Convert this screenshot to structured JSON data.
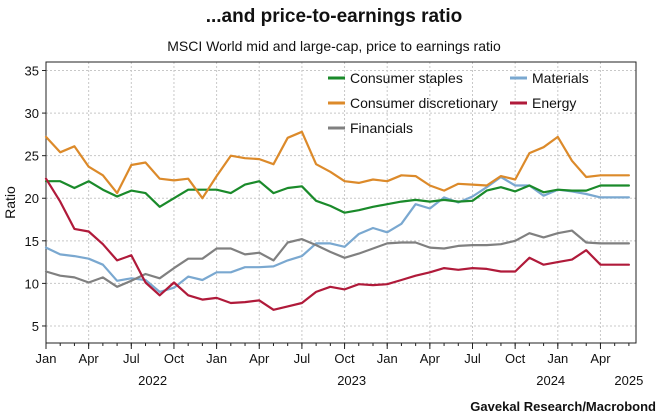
{
  "chart_data": {
    "type": "line",
    "title": "...and price-to-earnings ratio",
    "subtitle": "MSCI World mid and large-cap, price to earnings ratio",
    "ylabel": "Ratio",
    "source": "Gavekal Research/Macrobond",
    "ylim": [
      3,
      36
    ],
    "yticks": [
      5,
      10,
      15,
      20,
      25,
      30,
      35
    ],
    "xlim": [
      0,
      41.5
    ],
    "month_ticks": [
      {
        "i": 0,
        "label": "Jan"
      },
      {
        "i": 3,
        "label": "Apr"
      },
      {
        "i": 6,
        "label": "Jul"
      },
      {
        "i": 9,
        "label": "Oct"
      },
      {
        "i": 12,
        "label": "Jan"
      },
      {
        "i": 15,
        "label": "Apr"
      },
      {
        "i": 18,
        "label": "Jul"
      },
      {
        "i": 21,
        "label": "Oct"
      },
      {
        "i": 24,
        "label": "Jan"
      },
      {
        "i": 27,
        "label": "Apr"
      },
      {
        "i": 30,
        "label": "Jul"
      },
      {
        "i": 33,
        "label": "Oct"
      },
      {
        "i": 36,
        "label": "Jan"
      },
      {
        "i": 39,
        "label": "Apr"
      }
    ],
    "year_labels": [
      {
        "i": 7.5,
        "label": "2022"
      },
      {
        "i": 21.5,
        "label": "2023"
      },
      {
        "i": 35.5,
        "label": "2024"
      },
      {
        "i": 41,
        "label": "2025"
      }
    ],
    "x_dates": [
      "2021-12",
      "2022-01",
      "2022-02",
      "2022-03",
      "2022-04",
      "2022-05",
      "2022-06",
      "2022-07",
      "2022-08",
      "2022-09",
      "2022-10",
      "2022-11",
      "2022-12",
      "2023-01",
      "2023-02",
      "2023-03",
      "2023-04",
      "2023-05",
      "2023-06",
      "2023-07",
      "2023-08",
      "2023-09",
      "2023-10",
      "2023-11",
      "2023-12",
      "2024-01",
      "2024-02",
      "2024-03",
      "2024-04",
      "2024-05",
      "2024-06",
      "2024-07",
      "2024-08",
      "2024-09",
      "2024-10",
      "2024-11",
      "2024-12",
      "2025-01",
      "2025-02",
      "2025-03",
      "2025-04",
      "2025-05"
    ],
    "grid": true,
    "legend_placement": "top",
    "series": [
      {
        "name": "Consumer staples",
        "color": "#1a8a2a",
        "values": [
          22.0,
          22.0,
          21.2,
          22.0,
          21.0,
          20.2,
          20.9,
          20.6,
          19.0,
          20.0,
          21.0,
          21.0,
          21.0,
          20.6,
          21.6,
          22.0,
          20.6,
          21.2,
          21.4,
          19.7,
          19.1,
          18.3,
          18.6,
          19.0,
          19.3,
          19.6,
          19.8,
          19.6,
          19.8,
          19.6,
          19.7,
          20.9,
          21.3,
          20.8,
          21.5,
          20.7,
          21.0,
          20.9,
          20.9,
          21.5,
          21.5,
          21.5
        ]
      },
      {
        "name": "Consumer discretionary",
        "color": "#dc8a2a",
        "values": [
          27.2,
          25.4,
          26.1,
          23.7,
          22.7,
          20.6,
          23.9,
          24.2,
          22.3,
          22.1,
          22.3,
          20.0,
          22.6,
          25.0,
          24.7,
          24.6,
          24.0,
          27.1,
          27.8,
          24.0,
          23.1,
          22.0,
          21.8,
          22.2,
          22.0,
          22.7,
          22.6,
          21.5,
          20.9,
          21.7,
          21.6,
          21.5,
          22.6,
          22.2,
          25.3,
          26.0,
          27.2,
          24.4,
          22.5,
          22.7,
          22.7,
          22.7
        ]
      },
      {
        "name": "Materials",
        "color": "#7aa8d0",
        "values": [
          14.2,
          13.4,
          13.2,
          12.9,
          12.2,
          10.3,
          10.6,
          10.4,
          9.0,
          9.5,
          10.8,
          10.4,
          11.3,
          11.3,
          11.9,
          11.9,
          12.0,
          12.7,
          13.2,
          14.7,
          14.7,
          14.3,
          15.8,
          16.5,
          16.0,
          17.0,
          19.3,
          18.8,
          20.1,
          19.5,
          20.2,
          21.3,
          22.5,
          21.5,
          21.5,
          20.3,
          21.0,
          20.8,
          20.5,
          20.1,
          20.1,
          20.1
        ]
      },
      {
        "name": "Energy",
        "color": "#b01a3a",
        "values": [
          22.3,
          19.6,
          16.4,
          16.1,
          14.6,
          12.7,
          13.3,
          10.1,
          8.6,
          10.1,
          8.6,
          8.1,
          8.3,
          7.7,
          7.8,
          8.0,
          6.9,
          7.3,
          7.7,
          9.0,
          9.6,
          9.3,
          9.9,
          9.8,
          9.9,
          10.4,
          10.9,
          11.3,
          11.8,
          11.6,
          11.8,
          11.7,
          11.4,
          11.4,
          13.0,
          12.2,
          12.5,
          12.8,
          13.9,
          12.2,
          12.2,
          12.2
        ]
      },
      {
        "name": "Financials",
        "color": "#808080",
        "values": [
          11.4,
          10.9,
          10.7,
          10.1,
          10.7,
          9.6,
          10.3,
          11.1,
          10.6,
          11.8,
          12.9,
          12.9,
          14.1,
          14.1,
          13.4,
          13.6,
          12.7,
          14.8,
          15.2,
          14.5,
          13.7,
          13.0,
          13.5,
          14.1,
          14.7,
          14.8,
          14.8,
          14.2,
          14.1,
          14.4,
          14.5,
          14.5,
          14.6,
          15.0,
          15.9,
          15.4,
          15.9,
          16.2,
          14.8,
          14.7,
          14.7,
          14.7
        ]
      }
    ]
  }
}
